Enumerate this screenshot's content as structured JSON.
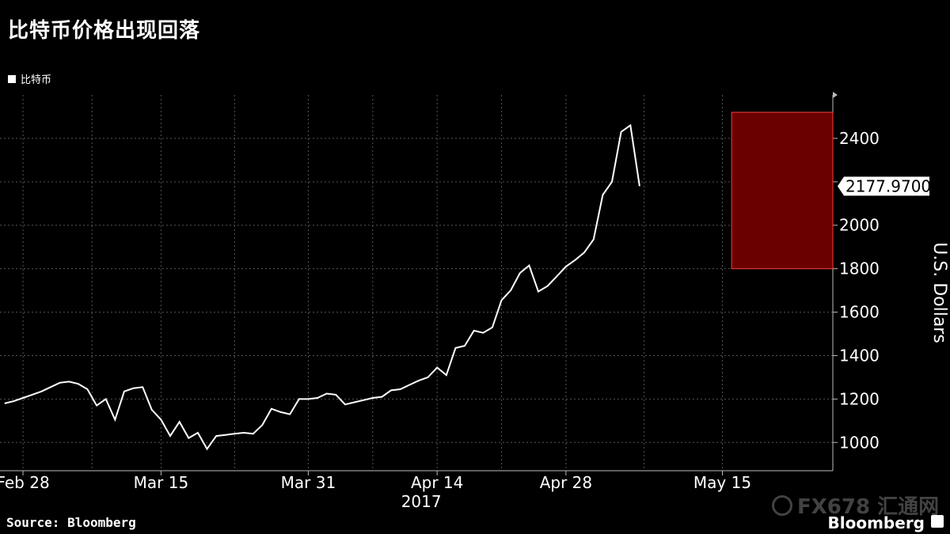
{
  "title": "比特币价格出现回落",
  "legend": {
    "label": "比特币",
    "color": "#ffffff"
  },
  "source": "Source: Bloomberg",
  "brand": "Bloomberg",
  "watermark": "FX678 汇通网",
  "chart_data": {
    "type": "line",
    "title": "比特币价格出现回落",
    "ylabel": "U.S. Dollars",
    "xlabel": "2017",
    "ylim": [
      870,
      2600
    ],
    "yticks": [
      1000,
      1200,
      1400,
      1600,
      1800,
      2000,
      2200,
      2400
    ],
    "ytick_labels": [
      "1000",
      "1200",
      "1400",
      "1600",
      "1800",
      "2000",
      "",
      "2400"
    ],
    "xticks": [
      {
        "label": "Feb 28",
        "day": 2
      },
      {
        "label": "Mar 15",
        "day": 17
      },
      {
        "label": "Mar 31",
        "day": 33
      },
      {
        "label": "Apr 14",
        "day": 47
      },
      {
        "label": "Apr 28",
        "day": 61
      },
      {
        "label": "May 15",
        "day": 78
      }
    ],
    "x_range": [
      -0.5,
      90
    ],
    "grid": true,
    "last_value_label": "2177.9700",
    "highlight": {
      "x_start": 79,
      "x_end": 90,
      "y_start": 1800,
      "y_end": 2520,
      "color": "#6a0000",
      "edge": "#ff3b3b"
    },
    "series": [
      {
        "name": "比特币",
        "color": "#ffffff",
        "highlight_color": "#ff9a9a",
        "x": [
          0,
          1,
          2,
          3,
          4,
          5,
          6,
          7,
          8,
          9,
          10,
          11,
          12,
          13,
          14,
          15,
          16,
          17,
          18,
          19,
          20,
          21,
          22,
          23,
          24,
          25,
          26,
          27,
          28,
          29,
          30,
          31,
          32,
          33,
          34,
          35,
          36,
          37,
          38,
          39,
          40,
          41,
          42,
          43,
          44,
          45,
          46,
          47,
          48,
          49,
          50,
          51,
          52,
          53,
          54,
          55,
          56,
          57,
          58,
          59,
          60,
          61,
          62,
          63,
          64,
          65,
          66,
          67,
          68,
          69,
          70,
          71,
          72,
          73,
          74,
          75,
          76,
          77,
          78,
          79,
          80,
          81,
          82,
          83,
          84,
          85,
          86,
          87
        ],
        "values": [
          1180,
          1190,
          1205,
          1220,
          1235,
          1255,
          1275,
          1280,
          1270,
          1245,
          1170,
          1200,
          1105,
          1235,
          1250,
          1255,
          1150,
          1105,
          1030,
          1095,
          1020,
          1045,
          970,
          1030,
          1035,
          1040,
          1045,
          1040,
          1080,
          1155,
          1140,
          1130,
          1200,
          1200,
          1205,
          1225,
          1220,
          1175,
          1185,
          1195,
          1205,
          1210,
          1240,
          1245,
          1265,
          1285,
          1300,
          1345,
          1310,
          1435,
          1445,
          1515,
          1505,
          1530,
          1655,
          1700,
          1780,
          1815,
          1695,
          1720,
          1765,
          1810,
          1840,
          1875,
          1935,
          2140,
          2200,
          2430,
          2460,
          2180,
          2178,
          2178,
          2178,
          2178,
          2178,
          2178,
          2178,
          2178,
          2178,
          2178,
          2178,
          2178,
          2178,
          2178,
          2178,
          2178,
          2178,
          2178
        ],
        "end_index": 69
      }
    ]
  }
}
